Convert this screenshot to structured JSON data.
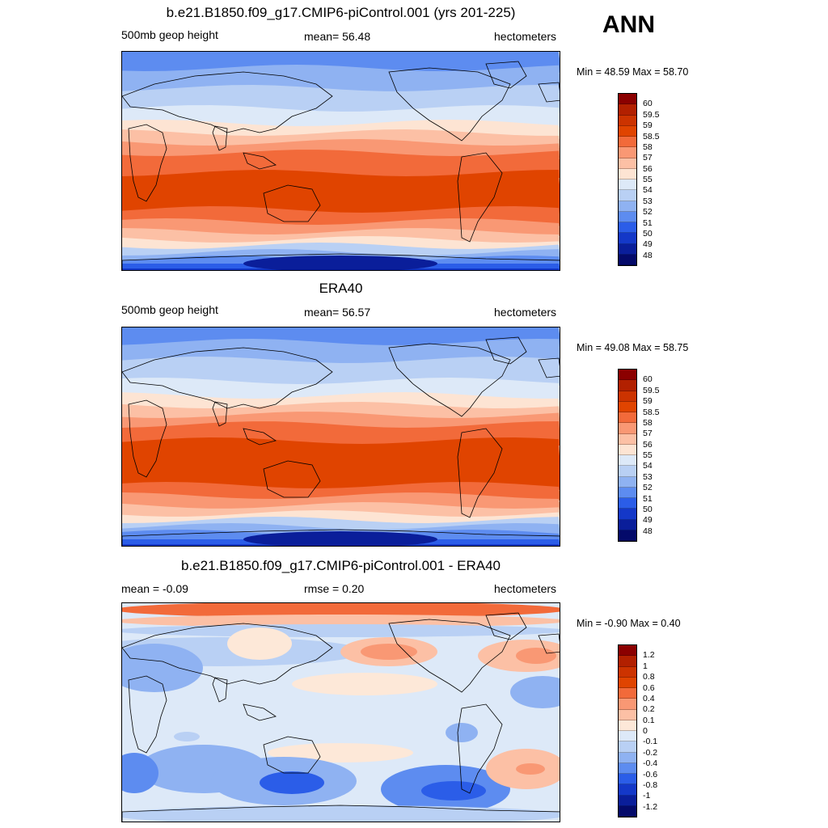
{
  "season": "ANN",
  "panels": [
    {
      "title": "b.e21.B1850.f09_g17.CMIP6-piControl.001 (yrs 201-225)",
      "left_label": "500mb geop height",
      "center_label": "mean=  56.48",
      "right_label": "hectometers",
      "minmax": "Min =  48.59 Max =  58.70",
      "colorbar": {
        "labels": [
          "60",
          "59.5",
          "59",
          "58.5",
          "58",
          "57",
          "56",
          "55",
          "54",
          "53",
          "52",
          "51",
          "50",
          "49",
          "48"
        ],
        "colors": [
          "#8b0000",
          "#b22000",
          "#cc3300",
          "#e04400",
          "#f26a3a",
          "#f99874",
          "#fcc0a5",
          "#fde4d3",
          "#dde9f8",
          "#b9d0f4",
          "#8fb2f2",
          "#5d8cf0",
          "#2b5de8",
          "#1438c8",
          "#0a1e9a",
          "#040a6a"
        ]
      },
      "field": "model"
    },
    {
      "title": "ERA40",
      "left_label": "500mb geop height",
      "center_label": "mean=  56.57",
      "right_label": "hectometers",
      "minmax": "Min =  49.08 Max =  58.75",
      "colorbar": {
        "labels": [
          "60",
          "59.5",
          "59",
          "58.5",
          "58",
          "57",
          "56",
          "55",
          "54",
          "53",
          "52",
          "51",
          "50",
          "49",
          "48"
        ],
        "colors": [
          "#8b0000",
          "#b22000",
          "#cc3300",
          "#e04400",
          "#f26a3a",
          "#f99874",
          "#fcc0a5",
          "#fde4d3",
          "#dde9f8",
          "#b9d0f4",
          "#8fb2f2",
          "#5d8cf0",
          "#2b5de8",
          "#1438c8",
          "#0a1e9a",
          "#040a6a"
        ]
      },
      "field": "obs"
    },
    {
      "title": "b.e21.B1850.f09_g17.CMIP6-piControl.001 - ERA40",
      "left_label": "mean =  -0.09",
      "center_label": "rmse =   0.20",
      "right_label": "hectometers",
      "minmax": "Min =  -0.90 Max =   0.40",
      "colorbar": {
        "labels": [
          "1.2",
          "1",
          "0.8",
          "0.6",
          "0.4",
          "0.2",
          "0.1",
          "0",
          "-0.1",
          "-0.2",
          "-0.4",
          "-0.6",
          "-0.8",
          "-1",
          "-1.2"
        ],
        "colors": [
          "#8b0000",
          "#b22000",
          "#cc3300",
          "#e04400",
          "#f26a3a",
          "#f99874",
          "#fcc0a5",
          "#fde8d8",
          "#dde9f8",
          "#b9d0f4",
          "#8fb2f2",
          "#5d8cf0",
          "#2b5de8",
          "#1438c8",
          "#0a1e9a",
          "#040a6a"
        ]
      },
      "field": "diff"
    }
  ]
}
